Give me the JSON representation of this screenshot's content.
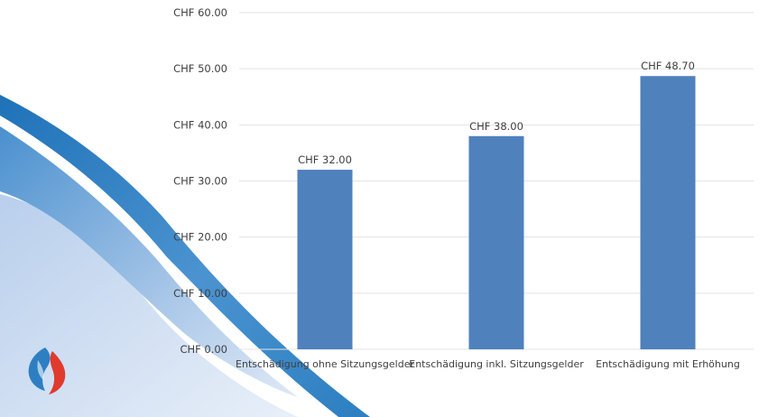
{
  "chart_data": {
    "type": "bar",
    "categories": [
      "Entschädigung ohne Sitzungsgelder",
      "Entschädigung inkl. Sitzungsgelder",
      "Entschädigung mit Erhöhung"
    ],
    "values": [
      32.0,
      38.0,
      48.7
    ],
    "data_labels": [
      "CHF 32.00",
      "CHF 38.00",
      "CHF 48.70"
    ],
    "yticks": [
      0,
      10,
      20,
      30,
      40,
      50,
      60
    ],
    "ytick_labels": [
      "CHF 0.00",
      "CHF 10.00",
      "CHF 20.00",
      "CHF 30.00",
      "CHF 40.00",
      "CHF 50.00",
      "CHF 60.00"
    ],
    "ylim": [
      0,
      60
    ],
    "grid": true,
    "bar_color": "#4f81bd",
    "title": "",
    "xlabel": "",
    "ylabel": ""
  },
  "decoration": {
    "wave_colors": [
      "#2e7fc2",
      "#8fb6e0",
      "#cddcf0"
    ],
    "logo_colors": [
      "#2d7fc1",
      "#e03a2f"
    ]
  }
}
